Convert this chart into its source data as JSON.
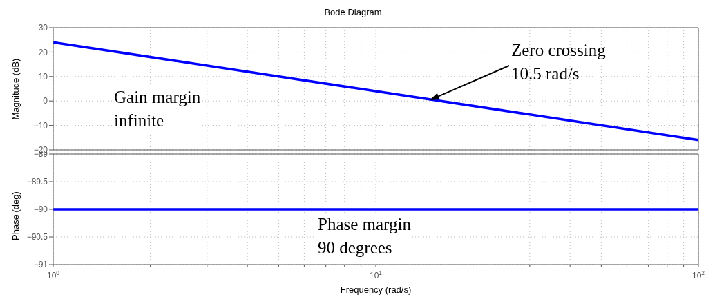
{
  "chart_data": [
    {
      "type": "line",
      "title": "Bode Diagram",
      "ylabel": "Magnitude (dB)",
      "x": [
        1,
        10,
        100
      ],
      "xlim": [
        1,
        100
      ],
      "log": "x",
      "grid": true,
      "tick_labels": "y",
      "xticks": [
        {
          "value": 1,
          "label": null
        },
        {
          "value": 2,
          "label": null
        },
        {
          "value": 3,
          "label": null
        },
        {
          "value": 4,
          "label": null
        },
        {
          "value": 5,
          "label": null
        },
        {
          "value": 6,
          "label": null
        },
        {
          "value": 7,
          "label": null
        },
        {
          "value": 8,
          "label": null
        },
        {
          "value": 9,
          "label": null
        },
        {
          "value": 10,
          "label": null
        },
        {
          "value": 20,
          "label": null
        },
        {
          "value": 30,
          "label": null
        },
        {
          "value": 40,
          "label": null
        },
        {
          "value": 50,
          "label": null
        },
        {
          "value": 60,
          "label": null
        },
        {
          "value": 70,
          "label": null
        },
        {
          "value": 80,
          "label": null
        },
        {
          "value": 90,
          "label": null
        },
        {
          "value": 100,
          "label": null
        }
      ],
      "ylim": [
        -20,
        30
      ],
      "yticks": [
        -20,
        -10,
        0,
        10,
        20,
        30
      ],
      "series": [
        {
          "color": "#0000ff",
          "values": [
            24,
            4,
            -16
          ]
        }
      ],
      "annotations": [
        "Gain margin\ninfinite",
        "Zero crossing\n10.5 rad/s"
      ]
    },
    {
      "type": "line",
      "xlabel": "Frequency  (rad/s)",
      "ylabel": "Phase (deg)",
      "x": [
        1,
        10,
        100
      ],
      "xlim": [
        1,
        100
      ],
      "log": "x",
      "grid": true,
      "xticks": [
        {
          "value": 1,
          "label": "10$^{0}$"
        },
        {
          "value": 2,
          "label": null
        },
        {
          "value": 3,
          "label": null
        },
        {
          "value": 4,
          "label": null
        },
        {
          "value": 5,
          "label": null
        },
        {
          "value": 6,
          "label": null
        },
        {
          "value": 7,
          "label": null
        },
        {
          "value": 8,
          "label": null
        },
        {
          "value": 9,
          "label": null
        },
        {
          "value": 10,
          "label": "10$^{1}$"
        },
        {
          "value": 20,
          "label": null
        },
        {
          "value": 30,
          "label": null
        },
        {
          "value": 40,
          "label": null
        },
        {
          "value": 50,
          "label": null
        },
        {
          "value": 60,
          "label": null
        },
        {
          "value": 70,
          "label": null
        },
        {
          "value": 80,
          "label": null
        },
        {
          "value": 90,
          "label": null
        },
        {
          "value": 100,
          "label": "10$^{2}$"
        }
      ],
      "ylim": [
        -91,
        -89
      ],
      "yticks": [
        -91,
        -90.5,
        -90,
        -89.5,
        -89
      ],
      "series": [
        {
          "color": "#0000ff",
          "values": [
            -90,
            -90,
            -90
          ]
        }
      ],
      "annotations": [
        "Phase margin\n90 degrees"
      ]
    }
  ]
}
